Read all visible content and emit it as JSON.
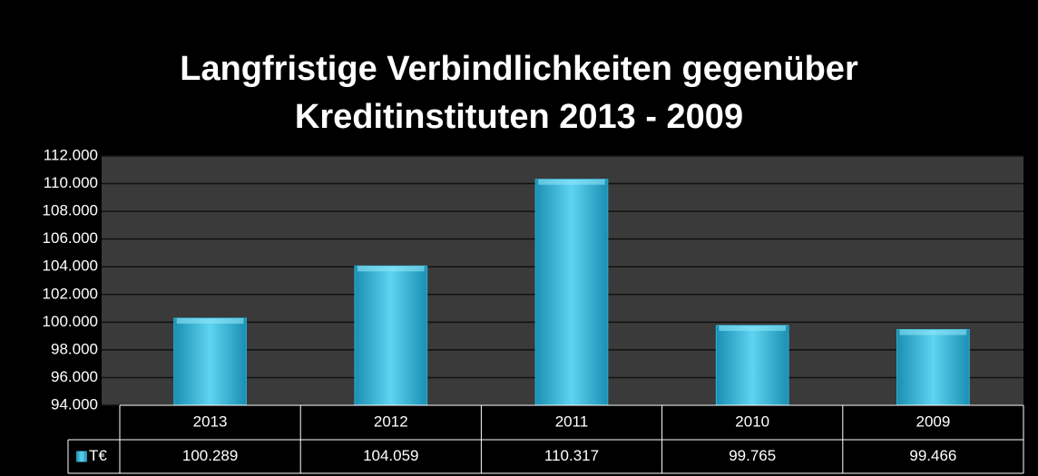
{
  "chart_data": {
    "type": "bar",
    "title": [
      "Langfristige Verbindlichkeiten gegenüber",
      "Kreditinstituten 2013 - 2009"
    ],
    "categories": [
      "2013",
      "2012",
      "2011",
      "2010",
      "2009"
    ],
    "series": [
      {
        "name": "T€",
        "color": "#2bb3d6",
        "values": [
          100289,
          104059,
          110317,
          99765,
          99466
        ],
        "value_labels": [
          "100.289",
          "104.059",
          "110.317",
          "99.765",
          "99.466"
        ]
      }
    ],
    "ylim": [
      94000,
      112000
    ],
    "yticks": [
      {
        "value": 94000,
        "label": "94.000"
      },
      {
        "value": 96000,
        "label": "96.000"
      },
      {
        "value": 98000,
        "label": "98.000"
      },
      {
        "value": 100000,
        "label": "100.000"
      },
      {
        "value": 102000,
        "label": "102.000"
      },
      {
        "value": 104000,
        "label": "104.000"
      },
      {
        "value": 106000,
        "label": "106.000"
      },
      {
        "value": 108000,
        "label": "108.000"
      },
      {
        "value": 110000,
        "label": "110.000"
      },
      {
        "value": 112000,
        "label": "112.000"
      }
    ],
    "grid": true,
    "data_table": true
  }
}
